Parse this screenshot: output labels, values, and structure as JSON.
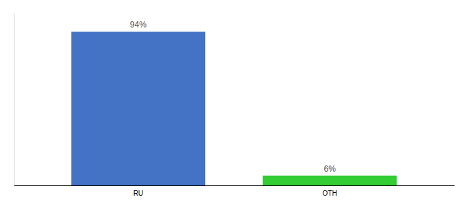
{
  "chart_data": {
    "type": "bar",
    "categories": [
      "RU",
      "OTH"
    ],
    "values": [
      94,
      6
    ],
    "value_labels": [
      "94%",
      "6%"
    ],
    "colors": [
      "#4472c4",
      "#33cc33"
    ],
    "ylim": [
      0,
      105
    ],
    "data_labels": true,
    "tick_labels": "x"
  }
}
